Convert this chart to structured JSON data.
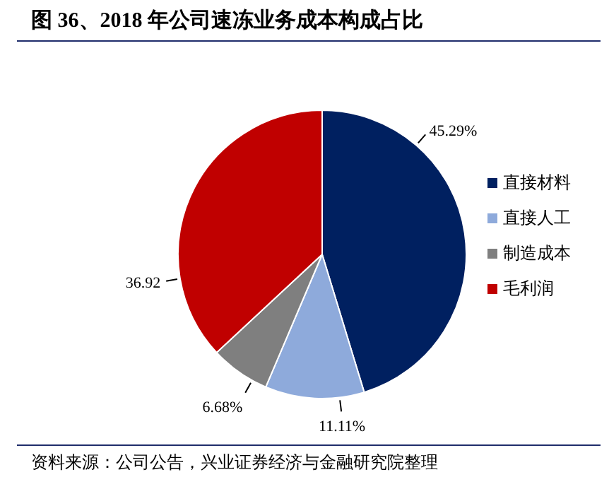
{
  "chart_data": {
    "type": "pie",
    "title": "图 36、2018 年公司速冻业务成本构成占比",
    "categories": [
      "直接材料",
      "直接人工",
      "制造成本",
      "毛利润"
    ],
    "values": [
      45.29,
      11.11,
      6.68,
      36.92
    ],
    "colors": [
      "#002060",
      "#8eaadb",
      "#7f7f7f",
      "#c00000"
    ],
    "value_labels": [
      "45.29%",
      "11.11%",
      "6.68%",
      "36.92"
    ],
    "legend": "right",
    "annotations": [
      "资料来源：公司公告，兴业证券经济与金融研究院整理"
    ]
  }
}
